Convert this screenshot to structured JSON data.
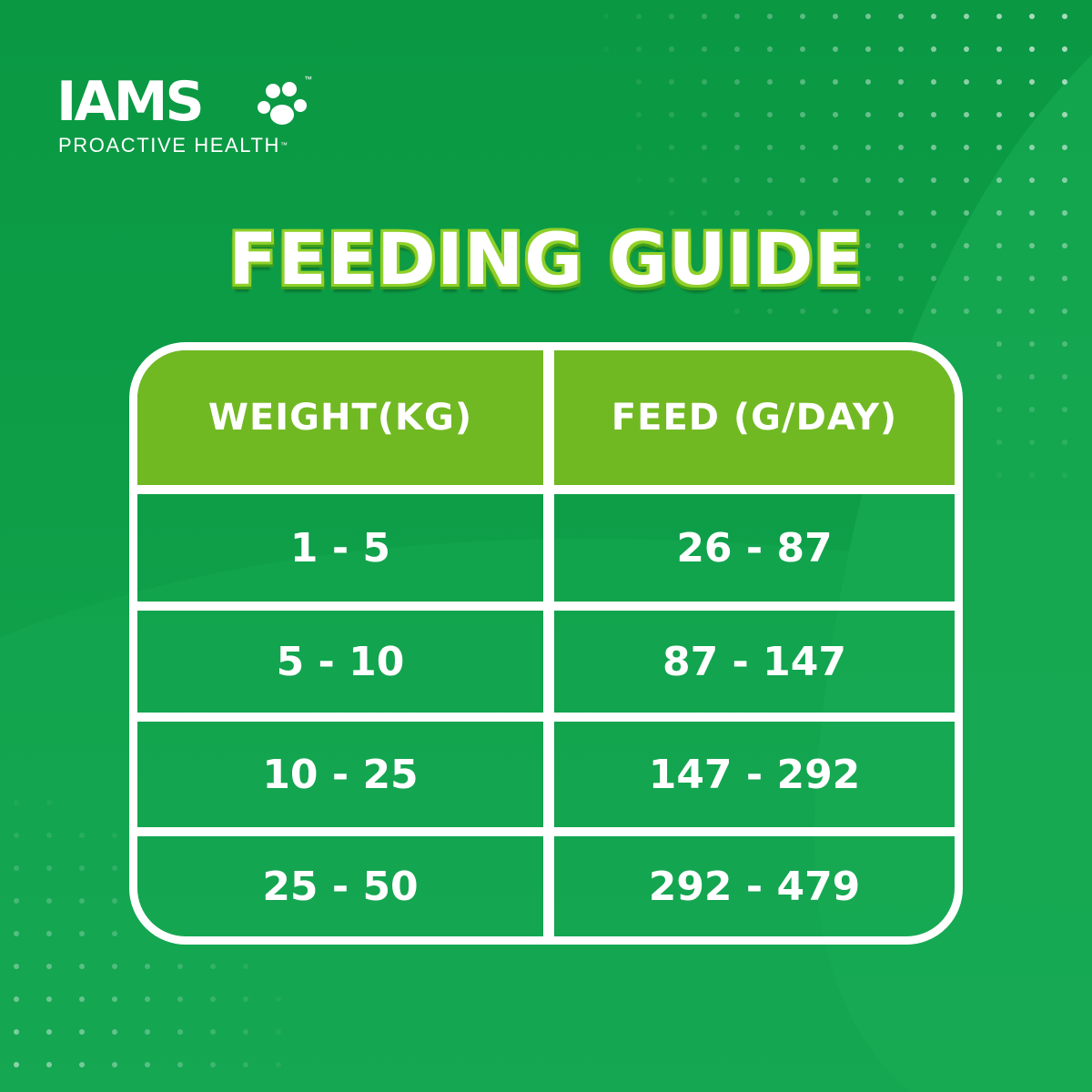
{
  "brand": {
    "name": "IAMS",
    "trademark": "™",
    "tagline": "PROACTIVE HEALTH",
    "tagline_trademark": "™",
    "logo_icon": "paw-icon"
  },
  "title": "FEEDING GUIDE",
  "table": {
    "headers": [
      "WEIGHT(KG)",
      "FEED (G/DAY)"
    ],
    "rows": [
      [
        "1 - 5",
        "26 - 87"
      ],
      [
        "5 - 10",
        "87 - 147"
      ],
      [
        "10 - 25",
        "147 - 292"
      ],
      [
        "25 - 50",
        "292 - 479"
      ]
    ]
  },
  "colors": {
    "background": "#0e9e48",
    "header_fill": "#71b923",
    "title_outline": "#8fd028",
    "border": "#ffffff"
  }
}
